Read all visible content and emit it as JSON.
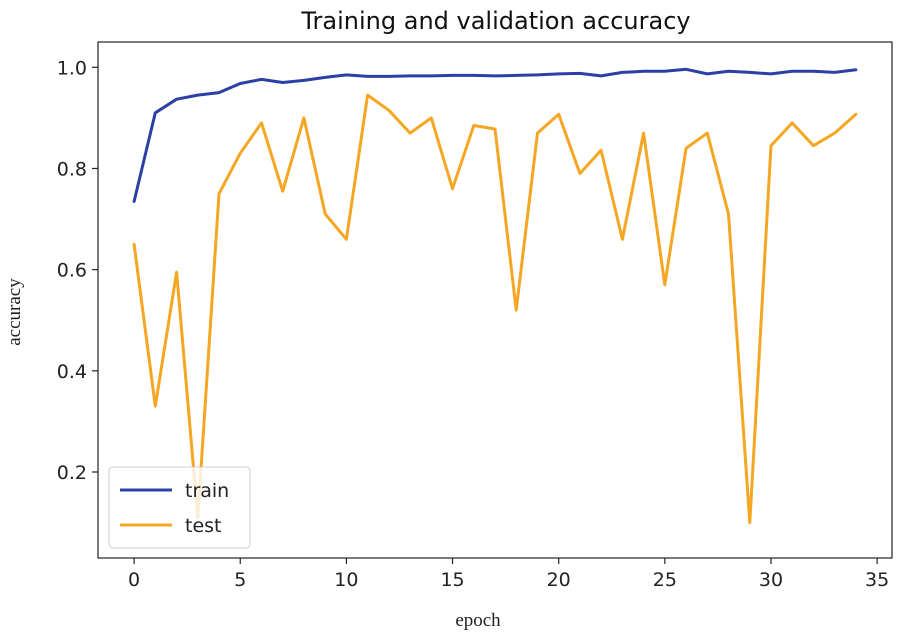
{
  "chart_data": {
    "type": "line",
    "title": "Training and validation accuracy",
    "xlabel": "epoch",
    "ylabel": "accuracy",
    "xlim": [
      -1.7,
      35.7
    ],
    "ylim": [
      0.03,
      1.05
    ],
    "xticks": [
      0,
      5,
      10,
      15,
      20,
      25,
      30,
      35
    ],
    "yticks": [
      0.2,
      0.4,
      0.6,
      0.8,
      1.0
    ],
    "ytick_labels": [
      "0.2",
      "0.4",
      "0.6",
      "0.8",
      "1.0"
    ],
    "grid": false,
    "legend": {
      "position": "lower-left",
      "entries": [
        "train",
        "test"
      ]
    },
    "x": [
      0,
      1,
      2,
      3,
      4,
      5,
      6,
      7,
      8,
      9,
      10,
      11,
      12,
      13,
      14,
      15,
      16,
      17,
      18,
      19,
      20,
      21,
      22,
      23,
      24,
      25,
      26,
      27,
      28,
      29,
      30,
      31,
      32,
      33,
      34
    ],
    "series": [
      {
        "name": "train",
        "color": "#2b3fa6",
        "values": [
          0.735,
          0.91,
          0.937,
          0.945,
          0.95,
          0.968,
          0.976,
          0.97,
          0.974,
          0.98,
          0.985,
          0.982,
          0.982,
          0.983,
          0.983,
          0.984,
          0.984,
          0.983,
          0.984,
          0.985,
          0.987,
          0.988,
          0.983,
          0.99,
          0.992,
          0.992,
          0.996,
          0.987,
          0.992,
          0.99,
          0.987,
          0.992,
          0.992,
          0.99,
          0.995
        ]
      },
      {
        "name": "test",
        "color": "#f5a623",
        "values": [
          0.65,
          0.33,
          0.595,
          0.11,
          0.75,
          0.83,
          0.89,
          0.755,
          0.9,
          0.71,
          0.66,
          0.945,
          0.915,
          0.87,
          0.9,
          0.76,
          0.885,
          0.878,
          0.52,
          0.87,
          0.907,
          0.79,
          0.836,
          0.66,
          0.87,
          0.57,
          0.84,
          0.87,
          0.71,
          0.1,
          0.845,
          0.89,
          0.845,
          0.87,
          0.907
        ]
      }
    ]
  }
}
